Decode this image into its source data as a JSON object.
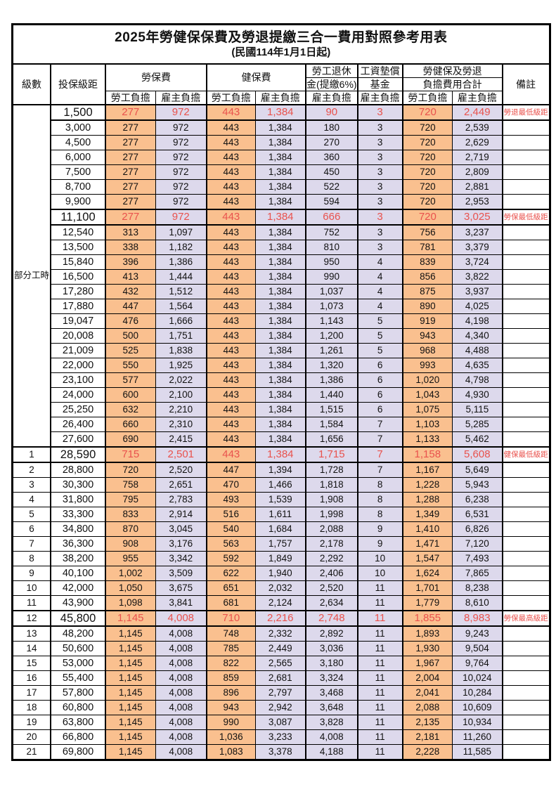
{
  "title": "2025年勞健保保費及勞退提繳三合一費用對照參考用表",
  "subtitle": "(民國114年1月1日起)",
  "colors": {
    "employee_fill": "#FAC08F",
    "employer_fill": "#DDD9EC",
    "highlight_text": "#E9524D",
    "border": "#000000",
    "background": "#FFFFFF"
  },
  "header": {
    "level": "級數",
    "bracket": "投保級距",
    "labor_ins": "勞保費",
    "health_ins": "健保費",
    "pension_l1": "勞工退休",
    "pension_l2": "金(提繳6%)",
    "wage_fund_l1": "工資墊償",
    "wage_fund_l2": "基金",
    "total_l1": "勞健保及勞退",
    "total_l2": "負擔費用合計",
    "employee": "勞工負擔",
    "employer": "雇主負擔",
    "note": "備註"
  },
  "table": {
    "part_time_label": "部分工時",
    "part_time_rowspan": 23,
    "value_columns": [
      "勞保費勞工負擔",
      "勞保費雇主負擔",
      "健保費勞工負擔",
      "健保費雇主負擔",
      "勞工退休金雇主負擔",
      "工資墊償基金雇主負擔",
      "合計勞工負擔",
      "合計雇主負擔"
    ],
    "rows": [
      {
        "level": "",
        "bracket": "1,500",
        "v": [
          "277",
          "972",
          "443",
          "1,384",
          "90",
          "3",
          "720",
          "2,449"
        ],
        "note": "勞退最低級距",
        "hl": true
      },
      {
        "level": "",
        "bracket": "3,000",
        "v": [
          "277",
          "972",
          "443",
          "1,384",
          "180",
          "3",
          "720",
          "2,539"
        ],
        "note": "",
        "hl": false
      },
      {
        "level": "",
        "bracket": "4,500",
        "v": [
          "277",
          "972",
          "443",
          "1,384",
          "270",
          "3",
          "720",
          "2,629"
        ],
        "note": "",
        "hl": false
      },
      {
        "level": "",
        "bracket": "6,000",
        "v": [
          "277",
          "972",
          "443",
          "1,384",
          "360",
          "3",
          "720",
          "2,719"
        ],
        "note": "",
        "hl": false
      },
      {
        "level": "",
        "bracket": "7,500",
        "v": [
          "277",
          "972",
          "443",
          "1,384",
          "450",
          "3",
          "720",
          "2,809"
        ],
        "note": "",
        "hl": false
      },
      {
        "level": "",
        "bracket": "8,700",
        "v": [
          "277",
          "972",
          "443",
          "1,384",
          "522",
          "3",
          "720",
          "2,881"
        ],
        "note": "",
        "hl": false
      },
      {
        "level": "",
        "bracket": "9,900",
        "v": [
          "277",
          "972",
          "443",
          "1,384",
          "594",
          "3",
          "720",
          "2,953"
        ],
        "note": "",
        "hl": false
      },
      {
        "level": "",
        "bracket": "11,100",
        "v": [
          "277",
          "972",
          "443",
          "1,384",
          "666",
          "3",
          "720",
          "3,025"
        ],
        "note": "勞保最低級距",
        "hl": true
      },
      {
        "level": "",
        "bracket": "12,540",
        "v": [
          "313",
          "1,097",
          "443",
          "1,384",
          "752",
          "3",
          "756",
          "3,237"
        ],
        "note": "",
        "hl": false
      },
      {
        "level": "",
        "bracket": "13,500",
        "v": [
          "338",
          "1,182",
          "443",
          "1,384",
          "810",
          "3",
          "781",
          "3,379"
        ],
        "note": "",
        "hl": false
      },
      {
        "level": "",
        "bracket": "15,840",
        "v": [
          "396",
          "1,386",
          "443",
          "1,384",
          "950",
          "4",
          "839",
          "3,724"
        ],
        "note": "",
        "hl": false
      },
      {
        "level": "",
        "bracket": "16,500",
        "v": [
          "413",
          "1,444",
          "443",
          "1,384",
          "990",
          "4",
          "856",
          "3,822"
        ],
        "note": "",
        "hl": false
      },
      {
        "level": "",
        "bracket": "17,280",
        "v": [
          "432",
          "1,512",
          "443",
          "1,384",
          "1,037",
          "4",
          "875",
          "3,937"
        ],
        "note": "",
        "hl": false
      },
      {
        "level": "",
        "bracket": "17,880",
        "v": [
          "447",
          "1,564",
          "443",
          "1,384",
          "1,073",
          "4",
          "890",
          "4,025"
        ],
        "note": "",
        "hl": false
      },
      {
        "level": "",
        "bracket": "19,047",
        "v": [
          "476",
          "1,666",
          "443",
          "1,384",
          "1,143",
          "5",
          "919",
          "4,198"
        ],
        "note": "",
        "hl": false
      },
      {
        "level": "",
        "bracket": "20,008",
        "v": [
          "500",
          "1,751",
          "443",
          "1,384",
          "1,200",
          "5",
          "943",
          "4,340"
        ],
        "note": "",
        "hl": false
      },
      {
        "level": "",
        "bracket": "21,009",
        "v": [
          "525",
          "1,838",
          "443",
          "1,384",
          "1,261",
          "5",
          "968",
          "4,488"
        ],
        "note": "",
        "hl": false
      },
      {
        "level": "",
        "bracket": "22,000",
        "v": [
          "550",
          "1,925",
          "443",
          "1,384",
          "1,320",
          "6",
          "993",
          "4,635"
        ],
        "note": "",
        "hl": false
      },
      {
        "level": "",
        "bracket": "23,100",
        "v": [
          "577",
          "2,022",
          "443",
          "1,384",
          "1,386",
          "6",
          "1,020",
          "4,798"
        ],
        "note": "",
        "hl": false
      },
      {
        "level": "",
        "bracket": "24,000",
        "v": [
          "600",
          "2,100",
          "443",
          "1,384",
          "1,440",
          "6",
          "1,043",
          "4,930"
        ],
        "note": "",
        "hl": false
      },
      {
        "level": "",
        "bracket": "25,250",
        "v": [
          "632",
          "2,210",
          "443",
          "1,384",
          "1,515",
          "6",
          "1,075",
          "5,115"
        ],
        "note": "",
        "hl": false
      },
      {
        "level": "",
        "bracket": "26,400",
        "v": [
          "660",
          "2,310",
          "443",
          "1,384",
          "1,584",
          "7",
          "1,103",
          "5,285"
        ],
        "note": "",
        "hl": false
      },
      {
        "level": "",
        "bracket": "27,600",
        "v": [
          "690",
          "2,415",
          "443",
          "1,384",
          "1,656",
          "7",
          "1,133",
          "5,462"
        ],
        "note": "",
        "hl": false
      },
      {
        "level": "1",
        "bracket": "28,590",
        "v": [
          "715",
          "2,501",
          "443",
          "1,384",
          "1,715",
          "7",
          "1,158",
          "5,608"
        ],
        "note": "健保最低級距",
        "hl": true
      },
      {
        "level": "2",
        "bracket": "28,800",
        "v": [
          "720",
          "2,520",
          "447",
          "1,394",
          "1,728",
          "7",
          "1,167",
          "5,649"
        ],
        "note": "",
        "hl": false
      },
      {
        "level": "3",
        "bracket": "30,300",
        "v": [
          "758",
          "2,651",
          "470",
          "1,466",
          "1,818",
          "8",
          "1,228",
          "5,943"
        ],
        "note": "",
        "hl": false
      },
      {
        "level": "4",
        "bracket": "31,800",
        "v": [
          "795",
          "2,783",
          "493",
          "1,539",
          "1,908",
          "8",
          "1,288",
          "6,238"
        ],
        "note": "",
        "hl": false
      },
      {
        "level": "5",
        "bracket": "33,300",
        "v": [
          "833",
          "2,914",
          "516",
          "1,611",
          "1,998",
          "8",
          "1,349",
          "6,531"
        ],
        "note": "",
        "hl": false
      },
      {
        "level": "6",
        "bracket": "34,800",
        "v": [
          "870",
          "3,045",
          "540",
          "1,684",
          "2,088",
          "9",
          "1,410",
          "6,826"
        ],
        "note": "",
        "hl": false
      },
      {
        "level": "7",
        "bracket": "36,300",
        "v": [
          "908",
          "3,176",
          "563",
          "1,757",
          "2,178",
          "9",
          "1,471",
          "7,120"
        ],
        "note": "",
        "hl": false
      },
      {
        "level": "8",
        "bracket": "38,200",
        "v": [
          "955",
          "3,342",
          "592",
          "1,849",
          "2,292",
          "10",
          "1,547",
          "7,493"
        ],
        "note": "",
        "hl": false
      },
      {
        "level": "9",
        "bracket": "40,100",
        "v": [
          "1,002",
          "3,509",
          "622",
          "1,940",
          "2,406",
          "10",
          "1,624",
          "7,865"
        ],
        "note": "",
        "hl": false
      },
      {
        "level": "10",
        "bracket": "42,000",
        "v": [
          "1,050",
          "3,675",
          "651",
          "2,032",
          "2,520",
          "11",
          "1,701",
          "8,238"
        ],
        "note": "",
        "hl": false
      },
      {
        "level": "11",
        "bracket": "43,900",
        "v": [
          "1,098",
          "3,841",
          "681",
          "2,124",
          "2,634",
          "11",
          "1,779",
          "8,610"
        ],
        "note": "",
        "hl": false
      },
      {
        "level": "12",
        "bracket": "45,800",
        "v": [
          "1,145",
          "4,008",
          "710",
          "2,216",
          "2,748",
          "11",
          "1,855",
          "8,983"
        ],
        "note": "勞保最高級距",
        "hl": true
      },
      {
        "level": "13",
        "bracket": "48,200",
        "v": [
          "1,145",
          "4,008",
          "748",
          "2,332",
          "2,892",
          "11",
          "1,893",
          "9,243"
        ],
        "note": "",
        "hl": false
      },
      {
        "level": "14",
        "bracket": "50,600",
        "v": [
          "1,145",
          "4,008",
          "785",
          "2,449",
          "3,036",
          "11",
          "1,930",
          "9,504"
        ],
        "note": "",
        "hl": false
      },
      {
        "level": "15",
        "bracket": "53,000",
        "v": [
          "1,145",
          "4,008",
          "822",
          "2,565",
          "3,180",
          "11",
          "1,967",
          "9,764"
        ],
        "note": "",
        "hl": false
      },
      {
        "level": "16",
        "bracket": "55,400",
        "v": [
          "1,145",
          "4,008",
          "859",
          "2,681",
          "3,324",
          "11",
          "2,004",
          "10,024"
        ],
        "note": "",
        "hl": false
      },
      {
        "level": "17",
        "bracket": "57,800",
        "v": [
          "1,145",
          "4,008",
          "896",
          "2,797",
          "3,468",
          "11",
          "2,041",
          "10,284"
        ],
        "note": "",
        "hl": false
      },
      {
        "level": "18",
        "bracket": "60,800",
        "v": [
          "1,145",
          "4,008",
          "943",
          "2,942",
          "3,648",
          "11",
          "2,088",
          "10,609"
        ],
        "note": "",
        "hl": false
      },
      {
        "level": "19",
        "bracket": "63,800",
        "v": [
          "1,145",
          "4,008",
          "990",
          "3,087",
          "3,828",
          "11",
          "2,135",
          "10,934"
        ],
        "note": "",
        "hl": false
      },
      {
        "level": "20",
        "bracket": "66,800",
        "v": [
          "1,145",
          "4,008",
          "1,036",
          "3,233",
          "4,008",
          "11",
          "2,181",
          "11,260"
        ],
        "note": "",
        "hl": false
      },
      {
        "level": "21",
        "bracket": "69,800",
        "v": [
          "1,145",
          "4,008",
          "1,083",
          "3,378",
          "4,188",
          "11",
          "2,228",
          "11,585"
        ],
        "note": "",
        "hl": false
      }
    ]
  }
}
